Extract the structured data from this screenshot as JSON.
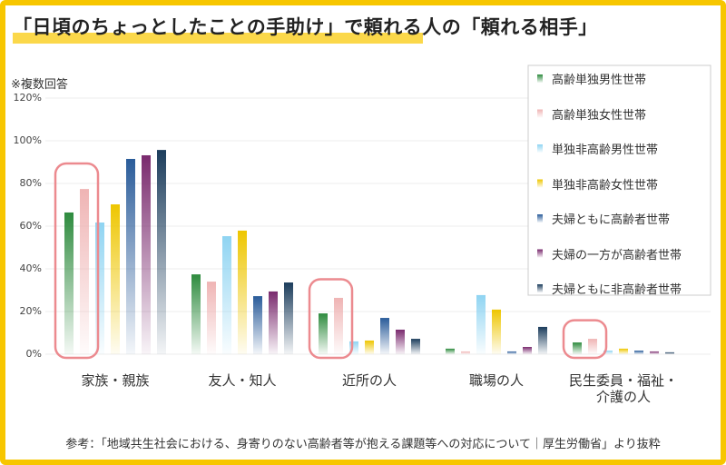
{
  "chart_data": {
    "type": "bar",
    "title": "「日頃のちょっとしたことの手助け」で頼れる人の「頼れる相手」",
    "note": "※複数回答",
    "source": "参考：「地域共生社会における、身寄りのない高齢者等が抱える課題等への対応について｜厚生労働省」より抜粋",
    "categories": [
      "家族・親族",
      "友人・知人",
      "近所の人",
      "職場の人",
      "民生委員・福祉・\n介護の人"
    ],
    "series": [
      {
        "name": "高齢単独男性世帯",
        "color": "#2e8b3e",
        "values": [
          66.4,
          37.4,
          19.1,
          2.6,
          5.5
        ]
      },
      {
        "name": "高齢単独女性世帯",
        "color": "#efb4b4",
        "values": [
          77.4,
          34,
          26.4,
          1.3,
          7.2
        ]
      },
      {
        "name": "単独非高齢男性世帯",
        "color": "#8fd4f2",
        "values": [
          61.7,
          55.3,
          6,
          27.7,
          1.7
        ]
      },
      {
        "name": "単独非高齢女性世帯",
        "color": "#eec600",
        "values": [
          70.2,
          57.9,
          6.4,
          20.9,
          2.6
        ]
      },
      {
        "name": "夫婦ともに高齢者世帯",
        "color": "#2a5c9a",
        "values": [
          91.5,
          27.2,
          17,
          1.3,
          1.7
        ]
      },
      {
        "name": "夫婦の一方が高齢者世帯",
        "color": "#7a2a6e",
        "values": [
          93.2,
          29.4,
          11.5,
          3.4,
          1.3
        ]
      },
      {
        "name": "夫婦ともに非高齢者世帯",
        "color": "#1c3d5c",
        "values": [
          95.7,
          33.6,
          7.2,
          12.8,
          0.9
        ]
      }
    ],
    "ylim": [
      0,
      120
    ],
    "yticks": [
      {
        "value": 0,
        "label": "0%"
      },
      {
        "value": 20,
        "label": "20%"
      },
      {
        "value": 40,
        "label": "40%"
      },
      {
        "value": 60,
        "label": "60%"
      },
      {
        "value": 80,
        "label": "80%"
      },
      {
        "value": 100,
        "label": "100%"
      },
      {
        "value": 120,
        "label": "120%"
      }
    ],
    "grid": true,
    "legend": "upper right"
  }
}
